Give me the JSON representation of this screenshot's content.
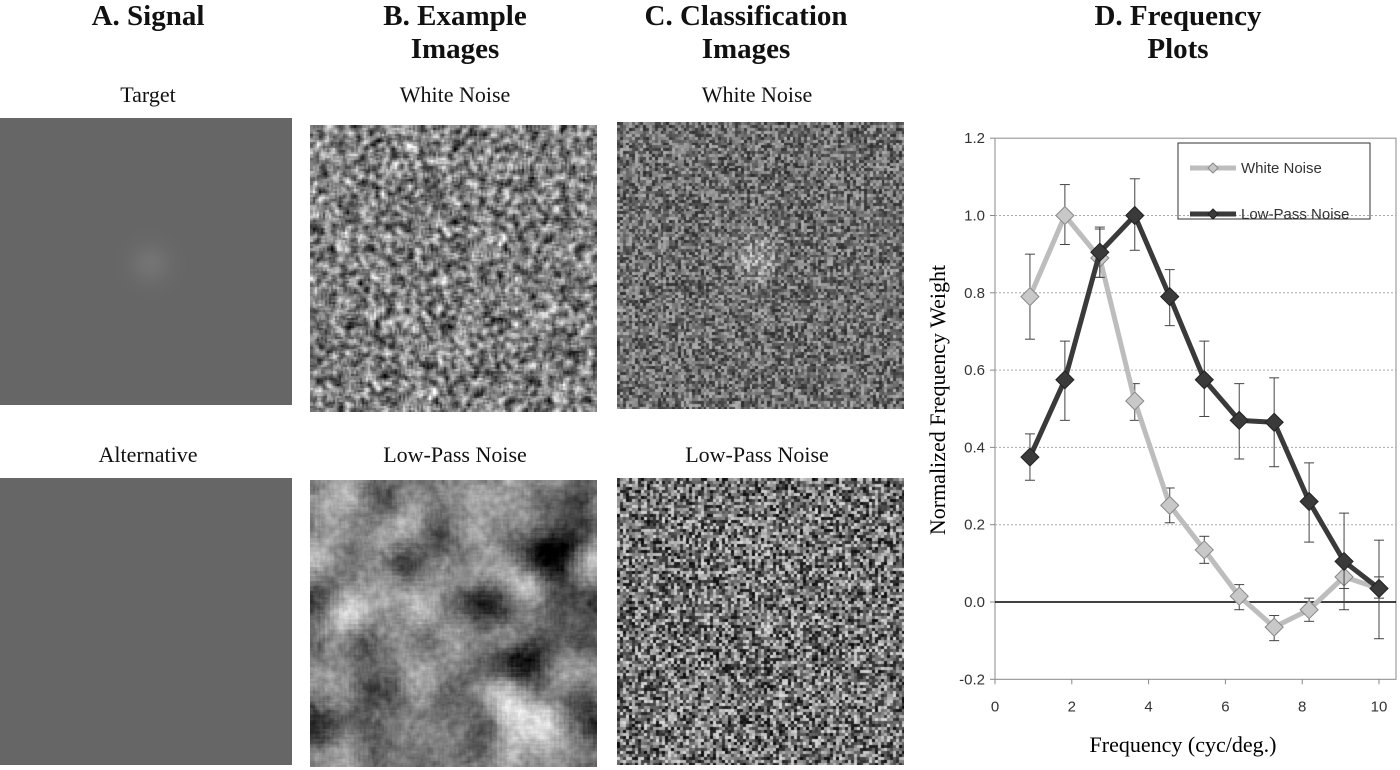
{
  "panels": {
    "a": {
      "title": "A. Signal",
      "top_label": "Target",
      "bottom_label": "Alternative"
    },
    "b": {
      "title_line1": "B. Example",
      "title_line2": "Images",
      "top_label": "White Noise",
      "bottom_label": "Low-Pass Noise"
    },
    "c": {
      "title_line1": "C. Classification",
      "title_line2": "Images",
      "top_label": "White Noise",
      "bottom_label": "Low-Pass Noise"
    },
    "d": {
      "title_line1": "D. Frequency",
      "title_line2": "Plots"
    }
  },
  "chart_data": {
    "type": "line",
    "xlabel": "Frequency (cyc/deg.)",
    "ylabel": "Normalized Frequency Weight",
    "xlim": [
      0,
      10.5
    ],
    "ylim": [
      -0.2,
      1.2
    ],
    "xticks": [
      0,
      2,
      4,
      6,
      8,
      10
    ],
    "yticks": [
      "-0.2",
      "0.0",
      "0.2",
      "0.4",
      "0.6",
      "0.8",
      "1.0",
      "1.2"
    ],
    "grid": "horizontal dashed",
    "legend": "top-right",
    "x": [
      0.91,
      1.82,
      2.73,
      3.64,
      4.55,
      5.45,
      6.36,
      7.27,
      8.18,
      9.09,
      10.0
    ],
    "series": [
      {
        "name": "White Noise",
        "color": "#bdbdbd",
        "values": [
          0.79,
          1.0,
          0.89,
          0.52,
          0.25,
          0.135,
          0.015,
          -0.065,
          -0.02,
          0.065,
          0.035
        ],
        "err_low": [
          0.68,
          0.925,
          0.84,
          0.47,
          0.205,
          0.1,
          -0.02,
          -0.1,
          -0.05,
          0.035,
          0.01
        ],
        "err_high": [
          0.9,
          1.08,
          0.965,
          0.565,
          0.295,
          0.17,
          0.045,
          -0.035,
          0.01,
          0.095,
          0.065
        ]
      },
      {
        "name": "Low-Pass Noise",
        "color": "#3a3a3a",
        "values": [
          0.375,
          0.575,
          0.905,
          1.0,
          0.79,
          0.575,
          0.47,
          0.465,
          0.26,
          0.105,
          0.035
        ],
        "err_low": [
          0.315,
          0.47,
          0.84,
          0.91,
          0.715,
          0.48,
          0.37,
          0.35,
          0.155,
          -0.02,
          -0.095
        ],
        "err_high": [
          0.435,
          0.675,
          0.97,
          1.095,
          0.86,
          0.675,
          0.565,
          0.58,
          0.36,
          0.23,
          0.16
        ]
      }
    ]
  }
}
